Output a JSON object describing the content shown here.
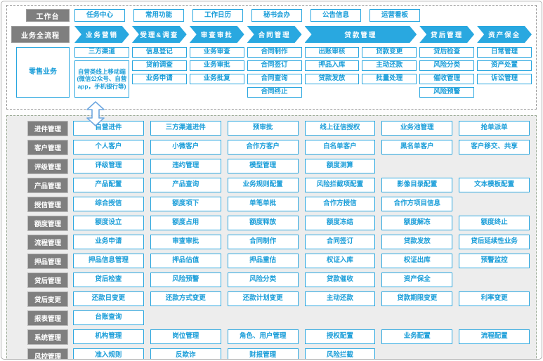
{
  "colors": {
    "accent": "#29a8e0",
    "label_gray": "#7f7f7f",
    "panel_bg": "#ededed"
  },
  "workbench": {
    "label": "工作台",
    "items": [
      "任务中心",
      "常用功能",
      "工作日历",
      "秘书会办",
      "公告信息",
      "运营看板"
    ]
  },
  "flow": {
    "label": "业务全流程",
    "steps": [
      {
        "label": "业务营销",
        "wide": false
      },
      {
        "label": "受理&调查",
        "wide": false
      },
      {
        "label": "审查审批",
        "wide": false
      },
      {
        "label": "合同管理",
        "wide": false
      },
      {
        "label": "贷款管理",
        "wide": true
      },
      {
        "label": "贷后管理",
        "wide": false
      },
      {
        "label": "资产保全",
        "wide": false
      }
    ]
  },
  "retail": {
    "label": "零售业务",
    "columns": [
      [
        {
          "label": "三方渠道"
        },
        {
          "label": "自营类线上移动端(微信公众号、自营app，手机银行等)",
          "tall": true
        }
      ],
      [
        {
          "label": "信息登记"
        },
        {
          "label": "贷前调查"
        },
        {
          "label": "业务申请"
        }
      ],
      [
        {
          "label": "业务审查"
        },
        {
          "label": "业务审批"
        },
        {
          "label": "业务批复"
        }
      ],
      [
        {
          "label": "合同制作"
        },
        {
          "label": "合同签订"
        },
        {
          "label": "合同查询"
        },
        {
          "label": "合同终止"
        }
      ],
      [
        {
          "label": "出账审核"
        },
        {
          "label": "押品入库"
        },
        {
          "label": "贷款发放"
        }
      ],
      [
        {
          "label": "贷款变更"
        },
        {
          "label": "主动还款"
        },
        {
          "label": "批量处理"
        }
      ],
      [
        {
          "label": "贷后检查"
        },
        {
          "label": "风险分类"
        },
        {
          "label": "催收管理"
        },
        {
          "label": "风险预警"
        }
      ],
      [
        {
          "label": "日常管理"
        },
        {
          "label": "资产处置"
        },
        {
          "label": "诉讼管理"
        }
      ]
    ]
  },
  "modules": [
    {
      "label": "进件管理",
      "items": [
        "自营进件",
        "三方渠道进件",
        "预审批",
        "线上征信授权",
        "业务池管理",
        "抢单派单"
      ]
    },
    {
      "label": "客户管理",
      "items": [
        "个人客户",
        "小微客户",
        "合作方客户",
        "白名单客户",
        "黑名单客户",
        "客户移交、共享"
      ]
    },
    {
      "label": "评级管理",
      "items": [
        "评级管理",
        "违约管理",
        "模型管理",
        "额度测算"
      ]
    },
    {
      "label": "产品管理",
      "items": [
        "产品配置",
        "产品查询",
        "业务规则配置",
        "风险拦截项配置",
        "影像目录配置",
        "文本模板配置"
      ]
    },
    {
      "label": "授信管理",
      "items": [
        "综合授信",
        "额度项下",
        "单笔单批",
        "合作方授信",
        "合作方项目信息"
      ]
    },
    {
      "label": "额度管理",
      "items": [
        "额度设立",
        "额度占用",
        "额度释放",
        "额度冻结",
        "额度解冻",
        "额度终止"
      ]
    },
    {
      "label": "流程管理",
      "items": [
        "业务申请",
        "审查审批",
        "合同制作",
        "合同签订",
        "贷款发放",
        "贷后延续性业务"
      ]
    },
    {
      "label": "押品管理",
      "items": [
        "押品信息管理",
        "押品估值",
        "押品重估",
        "权证入库",
        "权证出库",
        "预警监控"
      ]
    },
    {
      "label": "贷后管理",
      "items": [
        "贷后检查",
        "风险预警",
        "风险分类",
        "贷款催收",
        "资产保全"
      ]
    },
    {
      "label": "贷后变更",
      "items": [
        "还款日变更",
        "还款方式变更",
        "还款计划变更",
        "主动还款",
        "贷款期限变更",
        "利率变更"
      ]
    },
    {
      "label": "报表管理",
      "items": [
        "台账查询"
      ]
    },
    {
      "label": "系统管理",
      "items": [
        "机构管理",
        "岗位管理",
        "角色、用户管理",
        "授权配置",
        "业务配置",
        "流程配置"
      ]
    },
    {
      "label": "风控管理",
      "items": [
        "准入规则",
        "反欺诈",
        "财报管理",
        "风险拦截"
      ]
    }
  ]
}
